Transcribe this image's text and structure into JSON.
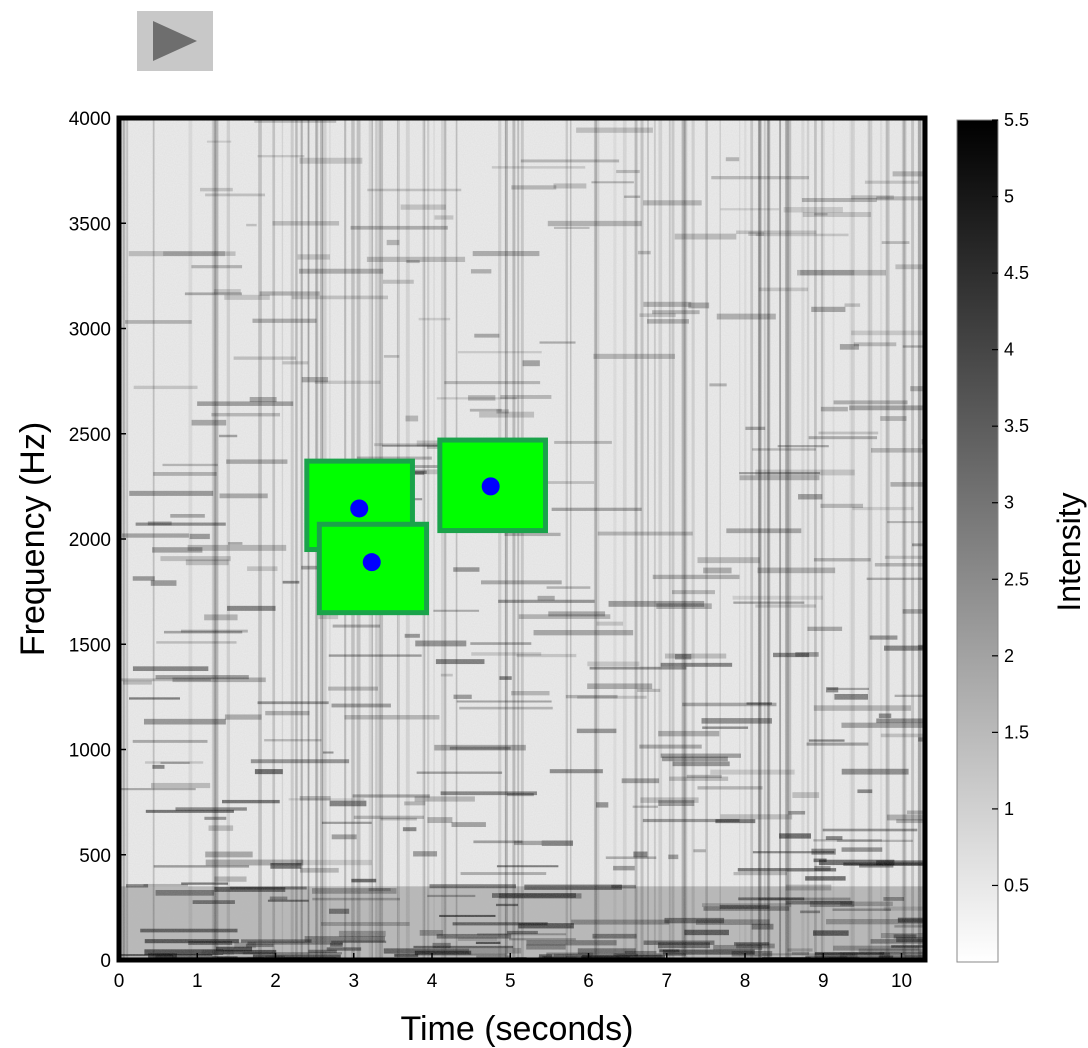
{
  "controls": {
    "play_icon": "play-icon"
  },
  "colors": {
    "box_fill": "#00ff00",
    "box_stroke": "#1aa34a",
    "point": "#0000ff",
    "frame": "#000000"
  },
  "chart_data": {
    "type": "heatmap",
    "subtype": "spectrogram",
    "xlabel": "Time (seconds)",
    "ylabel": "Frequency (Hz)",
    "colorbar_label": "Intensity",
    "xlim": [
      0,
      10.3
    ],
    "ylim": [
      0,
      4000
    ],
    "xticks": [
      0,
      1,
      2,
      3,
      4,
      5,
      6,
      7,
      8,
      9,
      10
    ],
    "yticks": [
      0,
      500,
      1000,
      1500,
      2000,
      2500,
      3000,
      3500,
      4000
    ],
    "colorbar": {
      "range": [
        0,
        5.5
      ],
      "colormap": "gray_reversed",
      "ticks": [
        0.5,
        1,
        1.5,
        2,
        2.5,
        3,
        3.5,
        4,
        4.5,
        5,
        5.5
      ],
      "tick_labels": [
        "0.5",
        "1",
        "1.5",
        "2",
        "2.5",
        "3",
        "3.5",
        "4",
        "4.5",
        "5",
        "5.5"
      ]
    },
    "annotations": [
      {
        "center_time": 3.07,
        "center_freq": 2145,
        "x_range": [
          2.4,
          3.75
        ],
        "y_range": [
          1950,
          2370
        ]
      },
      {
        "center_time": 3.23,
        "center_freq": 1890,
        "x_range": [
          2.56,
          3.93
        ],
        "y_range": [
          1650,
          2070
        ]
      },
      {
        "center_time": 4.75,
        "center_freq": 2250,
        "x_range": [
          4.1,
          5.45
        ],
        "y_range": [
          2040,
          2470
        ]
      }
    ]
  }
}
